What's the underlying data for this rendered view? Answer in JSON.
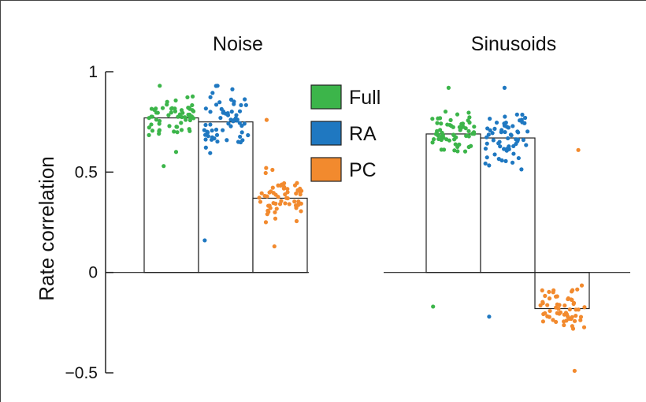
{
  "colors": {
    "Full": "#3cb54a",
    "RA": "#1f78c1",
    "PC": "#f28a2e",
    "bar_fill": "#ffffff",
    "bar_stroke": "#222222"
  },
  "chart_data": {
    "type": "bar",
    "ylabel": "Rate correlation",
    "ylim": [
      -0.5,
      1
    ],
    "yticks": [
      {
        "value": 1,
        "label": "1"
      },
      {
        "value": 0.5,
        "label": "0.5"
      },
      {
        "value": 0,
        "label": "0"
      },
      {
        "value": -0.5,
        "label": "−0.5"
      }
    ],
    "legend": {
      "placement": "between panels, top",
      "entries": [
        "Full",
        "RA",
        "PC"
      ]
    },
    "panels": [
      {
        "title": "Noise",
        "series": [
          {
            "name": "Full",
            "value": 0.77
          },
          {
            "name": "RA",
            "value": 0.75
          },
          {
            "name": "PC",
            "value": 0.37
          }
        ]
      },
      {
        "title": "Sinusoids",
        "series": [
          {
            "name": "Full",
            "value": 0.69
          },
          {
            "name": "RA",
            "value": 0.67
          },
          {
            "name": "PC",
            "value": -0.18
          }
        ]
      }
    ]
  }
}
